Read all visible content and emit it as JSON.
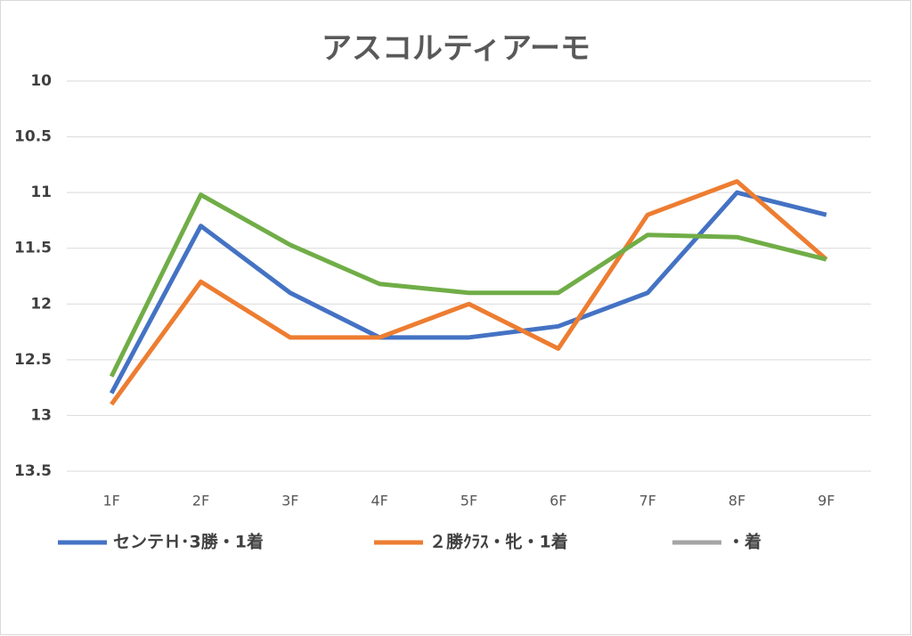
{
  "chart_data": {
    "type": "line",
    "title": "アスコルティアーモ",
    "categories": [
      "1F",
      "2F",
      "3F",
      "4F",
      "5F",
      "6F",
      "7F",
      "8F",
      "9F"
    ],
    "series": [
      {
        "name": "センテＨ･3勝・1着",
        "color": "#4472c4",
        "values": [
          12.8,
          11.3,
          11.9,
          12.3,
          12.3,
          12.2,
          11.9,
          11.0,
          11.2
        ]
      },
      {
        "name": "２勝ｸﾗｽ・牝・1着",
        "color": "#ed7d31",
        "values": [
          12.9,
          11.8,
          12.3,
          12.3,
          12.0,
          12.4,
          11.2,
          10.9,
          11.6
        ]
      },
      {
        "name": "・着",
        "color": "#a5a5a5",
        "values": [
          null,
          null,
          null,
          null,
          null,
          null,
          null,
          null,
          null
        ]
      },
      {
        "color": "#70ad47",
        "values": [
          12.65,
          11.02,
          11.47,
          11.82,
          11.9,
          11.9,
          11.38,
          11.4,
          11.6
        ]
      }
    ],
    "ylim": [
      10,
      13.5
    ],
    "y_inverted": true,
    "yticks": [
      10,
      10.5,
      11,
      11.5,
      12,
      12.5,
      13,
      13.5
    ],
    "grid": true,
    "legend": "bottom"
  }
}
